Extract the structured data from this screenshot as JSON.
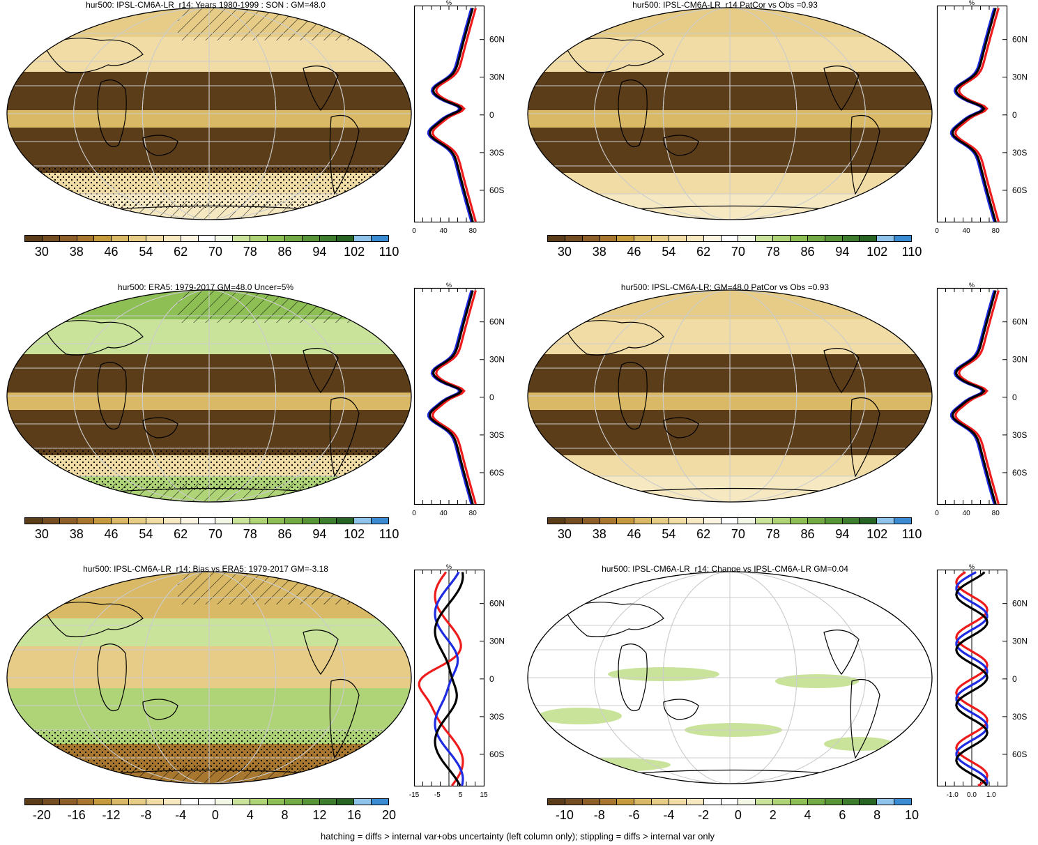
{
  "footer": "hatching = diffs > internal var+obs uncertainty (left column only); stippling = diffs > internal var only",
  "colors": {
    "mean_scale": [
      "#5c3d1a",
      "#744d22",
      "#8c5e2a",
      "#a8772f",
      "#c49a3d",
      "#d9b866",
      "#e6cc86",
      "#f0dca4",
      "#f6e9c2",
      "#fbf4e0",
      "#ffffff",
      "#f3f8e6",
      "#c9e39a",
      "#aed477",
      "#8dbf54",
      "#72aa45",
      "#579538",
      "#3d7d2d",
      "#276424",
      "#8fc3ea",
      "#3a8bd1"
    ],
    "diff_scale": [
      "#5c3d1a",
      "#744d22",
      "#8c5e2a",
      "#a8772f",
      "#c49a3d",
      "#d9b866",
      "#e6cc86",
      "#f0dca4",
      "#f6e9c2",
      "#ffffff",
      "#ffffff",
      "#f3f8e6",
      "#c9e39a",
      "#aed477",
      "#8dbf54",
      "#72aa45",
      "#579538",
      "#3d7d2d",
      "#276424",
      "#8fc3ea",
      "#3a8bd1"
    ],
    "line_red": "#ee1c1c",
    "line_blue": "#1f2be0",
    "line_black": "#000000"
  },
  "panels": [
    {
      "title": "hur500: IPSL-CM6A-LR_r14: Years 1980-1999 : SON : GM=48.0",
      "cb_labels": [
        "30",
        "38",
        "46",
        "54",
        "62",
        "70",
        "78",
        "86",
        "94",
        "102",
        "110"
      ],
      "scale": "mean",
      "zonal": {
        "title": "%",
        "lat_labels": [
          "60N",
          "30N",
          "0",
          "30S",
          "60S"
        ],
        "x_labels": [
          "0",
          "40",
          "80"
        ],
        "xlim": [
          0,
          95
        ],
        "zero_line": false
      }
    },
    {
      "title": "hur500: IPSL-CM6A-LR_r14 PatCor vs Obs =0.93",
      "cb_labels": [
        "30",
        "38",
        "46",
        "54",
        "62",
        "70",
        "78",
        "86",
        "94",
        "102",
        "110"
      ],
      "scale": "mean",
      "zonal": {
        "title": "%",
        "lat_labels": [
          "60N",
          "30N",
          "0",
          "30S",
          "60S"
        ],
        "x_labels": [
          "0",
          "40",
          "80"
        ],
        "xlim": [
          0,
          95
        ],
        "zero_line": false
      }
    },
    {
      "title": "hur500: ERA5: 1979-2017 GM=48.0 Uncer=5%",
      "cb_labels": [
        "30",
        "38",
        "46",
        "54",
        "62",
        "70",
        "78",
        "86",
        "94",
        "102",
        "110"
      ],
      "scale": "mean",
      "zonal": {
        "title": "%",
        "lat_labels": [
          "60N",
          "30N",
          "0",
          "30S",
          "60S"
        ],
        "x_labels": [
          "0",
          "40",
          "80"
        ],
        "xlim": [
          0,
          95
        ],
        "zero_line": false
      }
    },
    {
      "title": "hur500: IPSL-CM6A-LR: GM=48.0 PatCor vs Obs =0.93",
      "cb_labels": [
        "30",
        "38",
        "46",
        "54",
        "62",
        "70",
        "78",
        "86",
        "94",
        "102",
        "110"
      ],
      "scale": "mean",
      "zonal": {
        "title": "%",
        "lat_labels": [
          "60N",
          "30N",
          "0",
          "30S",
          "60S"
        ],
        "x_labels": [
          "0",
          "40",
          "80"
        ],
        "xlim": [
          0,
          95
        ],
        "zero_line": false
      }
    },
    {
      "title": "hur500: IPSL-CM6A-LR_r14: Bias vs ERA5: 1979-2017  GM=-3.18",
      "cb_labels": [
        "-20",
        "-16",
        "-12",
        "-8",
        "-4",
        "0",
        "4",
        "8",
        "12",
        "16",
        "20"
      ],
      "scale": "diff",
      "zonal": {
        "title": "%",
        "lat_labels": [
          "60N",
          "30N",
          "0",
          "30S",
          "60S"
        ],
        "x_labels": [
          "-15",
          "-5",
          "5",
          "15"
        ],
        "xlim": [
          -15,
          15
        ],
        "zero_line": true
      }
    },
    {
      "title": "hur500: IPSL-CM6A-LR_r14: Change vs IPSL-CM6A-LR GM=0.04",
      "cb_labels": [
        "-10",
        "-8",
        "-6",
        "-4",
        "-2",
        "0",
        "2",
        "4",
        "6",
        "8",
        "10"
      ],
      "scale": "diff",
      "zonal": {
        "title": "%",
        "lat_labels": [
          "60N",
          "30N",
          "0",
          "30S",
          "60S"
        ],
        "x_labels": [
          "-1.0",
          "0.0",
          "1.0"
        ],
        "xlim": [
          -1.8,
          1.8
        ],
        "zero_line": true
      }
    }
  ]
}
